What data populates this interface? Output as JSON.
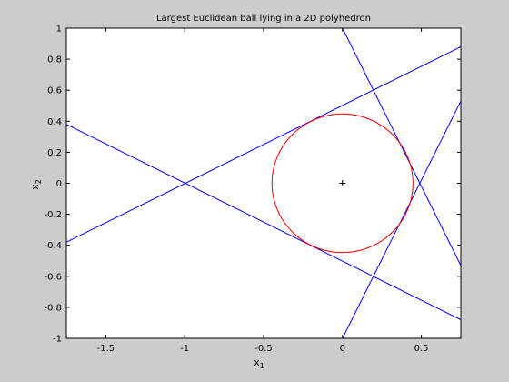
{
  "chart_data": {
    "type": "line",
    "title": "Largest Euclidean ball lying in a 2D polyhedron",
    "xlabel": "x",
    "xlabel_sub": "1",
    "ylabel": "x",
    "ylabel_sub": "2",
    "xlim": [
      -1.75,
      0.75
    ],
    "ylim": [
      -1,
      1
    ],
    "grid": false,
    "xticks": [
      -1.5,
      -1,
      -0.5,
      0,
      0.5
    ],
    "xtick_labels": [
      "-1.5",
      "-1",
      "-0.5",
      "0",
      "0.5"
    ],
    "yticks": [
      -1,
      -0.8,
      -0.6,
      -0.4,
      -0.2,
      0,
      0.2,
      0.4,
      0.6,
      0.8,
      1
    ],
    "ytick_labels": [
      "-1",
      "-0.8",
      "-0.6",
      "-0.4",
      "-0.2",
      "0",
      "0.2",
      "0.4",
      "0.6",
      "0.8",
      "1"
    ],
    "series": [
      {
        "color": "#0000ff",
        "x": [
          -1.75,
          0.75
        ],
        "y": [
          -0.38,
          0.88
        ]
      },
      {
        "color": "#0000ff",
        "x": [
          -1.75,
          0.75
        ],
        "y": [
          0.38,
          -0.88
        ]
      },
      {
        "color": "#0000ff",
        "x": [
          0.0,
          0.75
        ],
        "y": [
          1.0,
          -0.53
        ]
      },
      {
        "color": "#0000ff",
        "x": [
          0.0,
          0.75
        ],
        "y": [
          -1.0,
          0.53
        ]
      }
    ],
    "ball": {
      "center": [
        0,
        0
      ],
      "radius": 0.447,
      "color": "#ff0000"
    },
    "center_marker": {
      "x": 0,
      "y": 0,
      "symbol": "+",
      "color": "#000000"
    }
  }
}
